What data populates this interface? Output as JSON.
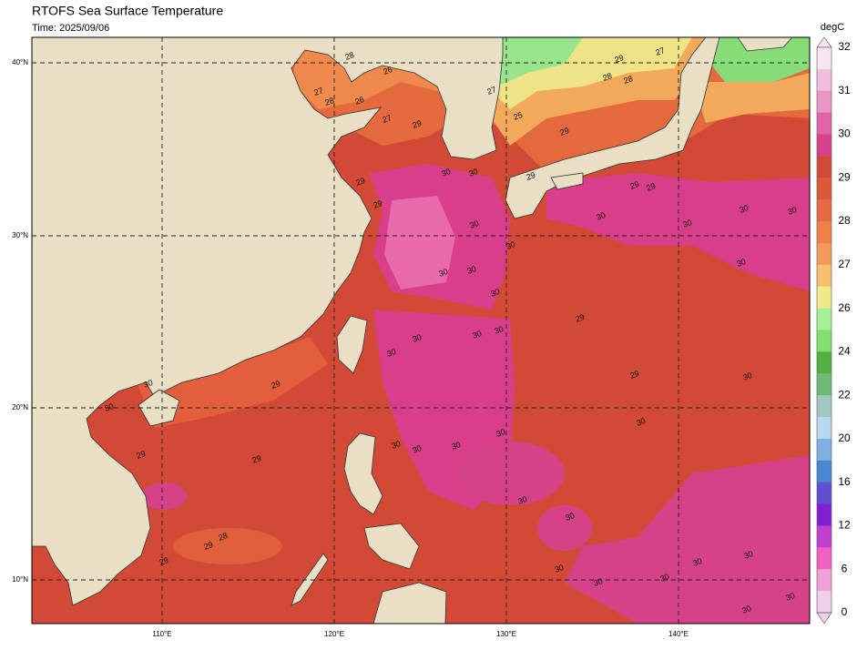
{
  "title": "RTOFS Sea Surface Temperature",
  "subtitle": "Time: 2025/09/06",
  "colorbar": {
    "unit": "degC",
    "labels": [
      32,
      31,
      30,
      29,
      28,
      27,
      26,
      24,
      22,
      20,
      16,
      12,
      6,
      0
    ],
    "colors": [
      "#f9e4f2",
      "#f2bcdc",
      "#ea94c8",
      "#e064aa",
      "#d8408c",
      "#d04a38",
      "#dc5838",
      "#e86a40",
      "#f08048",
      "#f49a58",
      "#f4c070",
      "#eeea86",
      "#a8f098",
      "#80e070",
      "#50b040",
      "#70b878",
      "#a0c8c0",
      "#b8d8f0",
      "#80b0e0",
      "#4888d0",
      "#6050d0",
      "#8020d0",
      "#c040d0",
      "#f060c0",
      "#f0a0d8",
      "#f0d0e8"
    ]
  },
  "map": {
    "lat_labels": [
      "40°N",
      "30°N",
      "20°N",
      "10°N"
    ],
    "lon_labels": [
      "110°E",
      "120°E",
      "130°E",
      "140°E"
    ],
    "contour_labels": [
      27,
      28,
      26,
      26,
      28,
      27,
      29,
      29,
      29,
      30,
      30,
      30,
      30,
      30,
      30,
      30,
      29,
      29,
      28,
      28,
      27,
      29,
      25,
      27,
      29,
      29,
      30,
      30,
      30,
      30,
      30,
      29,
      30,
      30,
      30,
      30,
      29,
      30,
      30,
      30,
      30,
      30,
      30,
      30,
      30,
      30,
      30,
      30,
      30,
      30,
      30,
      30,
      29,
      30,
      30,
      29,
      29,
      29,
      28,
      29
    ]
  }
}
